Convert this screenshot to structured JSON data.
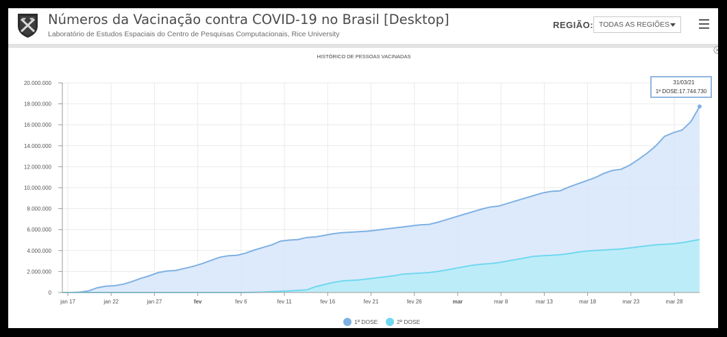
{
  "header": {
    "title": "Números da Vacinação contra COVID-19 no Brasil [Desktop]",
    "subtitle": "Laboratório de Estudos Espaciais do Centro de Pesquisas Computacionais, Rice University",
    "region_label": "REGIÃO:",
    "region_value": "TODAS AS REGIÕES"
  },
  "colors": {
    "dose1_line": "#7eb0e3",
    "dose1_fill": "#d7e6fa",
    "dose2_line": "#6fd8ef",
    "dose2_fill": "#b9ecf8"
  },
  "chart_data": {
    "type": "area",
    "title": "HISTÓRICO DE PESSOAS VACINADAS",
    "x_tick_labels": [
      "jan 17",
      "jan 22",
      "jan 27",
      "fev",
      "fev 6",
      "fev 11",
      "fev 16",
      "fev 21",
      "fev 26",
      "mar",
      "mar 8",
      "mar 13",
      "mar 18",
      "mar 23",
      "mar 28"
    ],
    "y_tick_labels": [
      "0",
      "2.000.000",
      "4.000.000",
      "6.000.000",
      "8.000.000",
      "10.000.000",
      "12.000.000",
      "14.000.000",
      "16.000.000",
      "18.000.000",
      "20.000.000"
    ],
    "ylim": [
      0,
      20000000
    ],
    "x": [
      "2021-01-17",
      "2021-01-18",
      "2021-01-19",
      "2021-01-20",
      "2021-01-21",
      "2021-01-22",
      "2021-01-23",
      "2021-01-24",
      "2021-01-25",
      "2021-01-26",
      "2021-01-27",
      "2021-01-28",
      "2021-01-29",
      "2021-01-30",
      "2021-01-31",
      "2021-02-01",
      "2021-02-02",
      "2021-02-03",
      "2021-02-04",
      "2021-02-05",
      "2021-02-06",
      "2021-02-07",
      "2021-02-08",
      "2021-02-09",
      "2021-02-10",
      "2021-02-11",
      "2021-02-12",
      "2021-02-13",
      "2021-02-14",
      "2021-02-15",
      "2021-02-16",
      "2021-02-17",
      "2021-02-18",
      "2021-02-19",
      "2021-02-20",
      "2021-02-21",
      "2021-02-22",
      "2021-02-23",
      "2021-02-24",
      "2021-02-25",
      "2021-02-26",
      "2021-02-27",
      "2021-02-28",
      "2021-03-01",
      "2021-03-02",
      "2021-03-03",
      "2021-03-04",
      "2021-03-05",
      "2021-03-06",
      "2021-03-07",
      "2021-03-08",
      "2021-03-09",
      "2021-03-10",
      "2021-03-11",
      "2021-03-12",
      "2021-03-13",
      "2021-03-14",
      "2021-03-15",
      "2021-03-16",
      "2021-03-17",
      "2021-03-18",
      "2021-03-19",
      "2021-03-20",
      "2021-03-21",
      "2021-03-22",
      "2021-03-23",
      "2021-03-24",
      "2021-03-25",
      "2021-03-26",
      "2021-03-27",
      "2021-03-28",
      "2021-03-29",
      "2021-03-30",
      "2021-03-31"
    ],
    "series": [
      {
        "name": "1ª DOSE",
        "values": [
          0,
          0,
          30000,
          150000,
          450000,
          600000,
          650000,
          800000,
          1050000,
          1350000,
          1600000,
          1900000,
          2050000,
          2100000,
          2300000,
          2500000,
          2750000,
          3050000,
          3350000,
          3500000,
          3550000,
          3750000,
          4050000,
          4300000,
          4550000,
          4900000,
          5000000,
          5050000,
          5250000,
          5300000,
          5450000,
          5600000,
          5700000,
          5750000,
          5800000,
          5850000,
          5950000,
          6050000,
          6150000,
          6250000,
          6350000,
          6450000,
          6500000,
          6700000,
          6950000,
          7200000,
          7450000,
          7700000,
          7950000,
          8150000,
          8250000,
          8500000,
          8750000,
          9000000,
          9250000,
          9500000,
          9650000,
          9700000,
          10050000,
          10350000,
          10650000,
          10950000,
          11350000,
          11650000,
          11750000,
          12150000,
          12700000,
          13300000,
          14000000,
          14900000,
          15250000,
          15500000,
          16300000,
          17744730
        ]
      },
      {
        "name": "2ª DOSE",
        "values": [
          0,
          0,
          0,
          0,
          0,
          0,
          0,
          0,
          0,
          0,
          0,
          0,
          0,
          0,
          0,
          0,
          0,
          0,
          0,
          0,
          0,
          0,
          20000,
          40000,
          80000,
          120000,
          150000,
          200000,
          250000,
          550000,
          750000,
          950000,
          1100000,
          1150000,
          1200000,
          1300000,
          1400000,
          1500000,
          1600000,
          1750000,
          1800000,
          1850000,
          1900000,
          2000000,
          2150000,
          2300000,
          2450000,
          2600000,
          2700000,
          2750000,
          2850000,
          3000000,
          3150000,
          3300000,
          3450000,
          3500000,
          3550000,
          3600000,
          3700000,
          3850000,
          3950000,
          4000000,
          4050000,
          4100000,
          4150000,
          4250000,
          4350000,
          4450000,
          4550000,
          4600000,
          4650000,
          4750000,
          4900000,
          5050000
        ]
      }
    ],
    "grid": true,
    "legend": "bottom-center",
    "tooltip": {
      "date": "31/03/21",
      "text": "1ª DOSE:17.744.730"
    }
  }
}
